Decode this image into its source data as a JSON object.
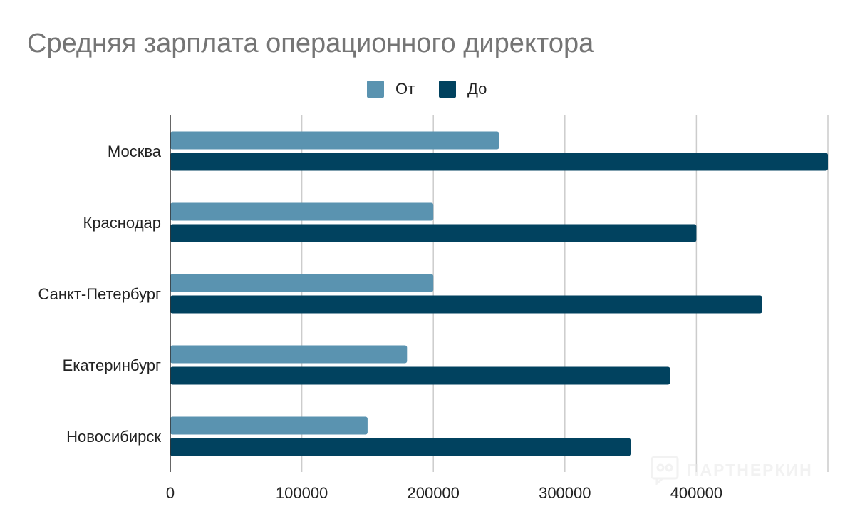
{
  "chart_data": {
    "type": "bar",
    "orientation": "horizontal",
    "title": "Средняя зарплата операционного директора",
    "categories": [
      "Москва",
      "Краснодар",
      "Санкт-Петербург",
      "Екатеринбург",
      "Новосибирск"
    ],
    "series": [
      {
        "name": "От",
        "color": "#5a93b0",
        "values": [
          250000,
          200000,
          200000,
          180000,
          150000
        ]
      },
      {
        "name": "До",
        "color": "#01425f",
        "values": [
          500000,
          400000,
          450000,
          380000,
          350000
        ]
      }
    ],
    "xlim": [
      0,
      500000
    ],
    "xticks": [
      "0",
      "100000",
      "200000",
      "300000",
      "400000"
    ],
    "xlabel": "",
    "ylabel": "",
    "grid": true,
    "legend_position": "top-center"
  },
  "watermark": {
    "text": "ПАРТНЕРКИН",
    "icon": "partnerkin-logo-icon"
  }
}
